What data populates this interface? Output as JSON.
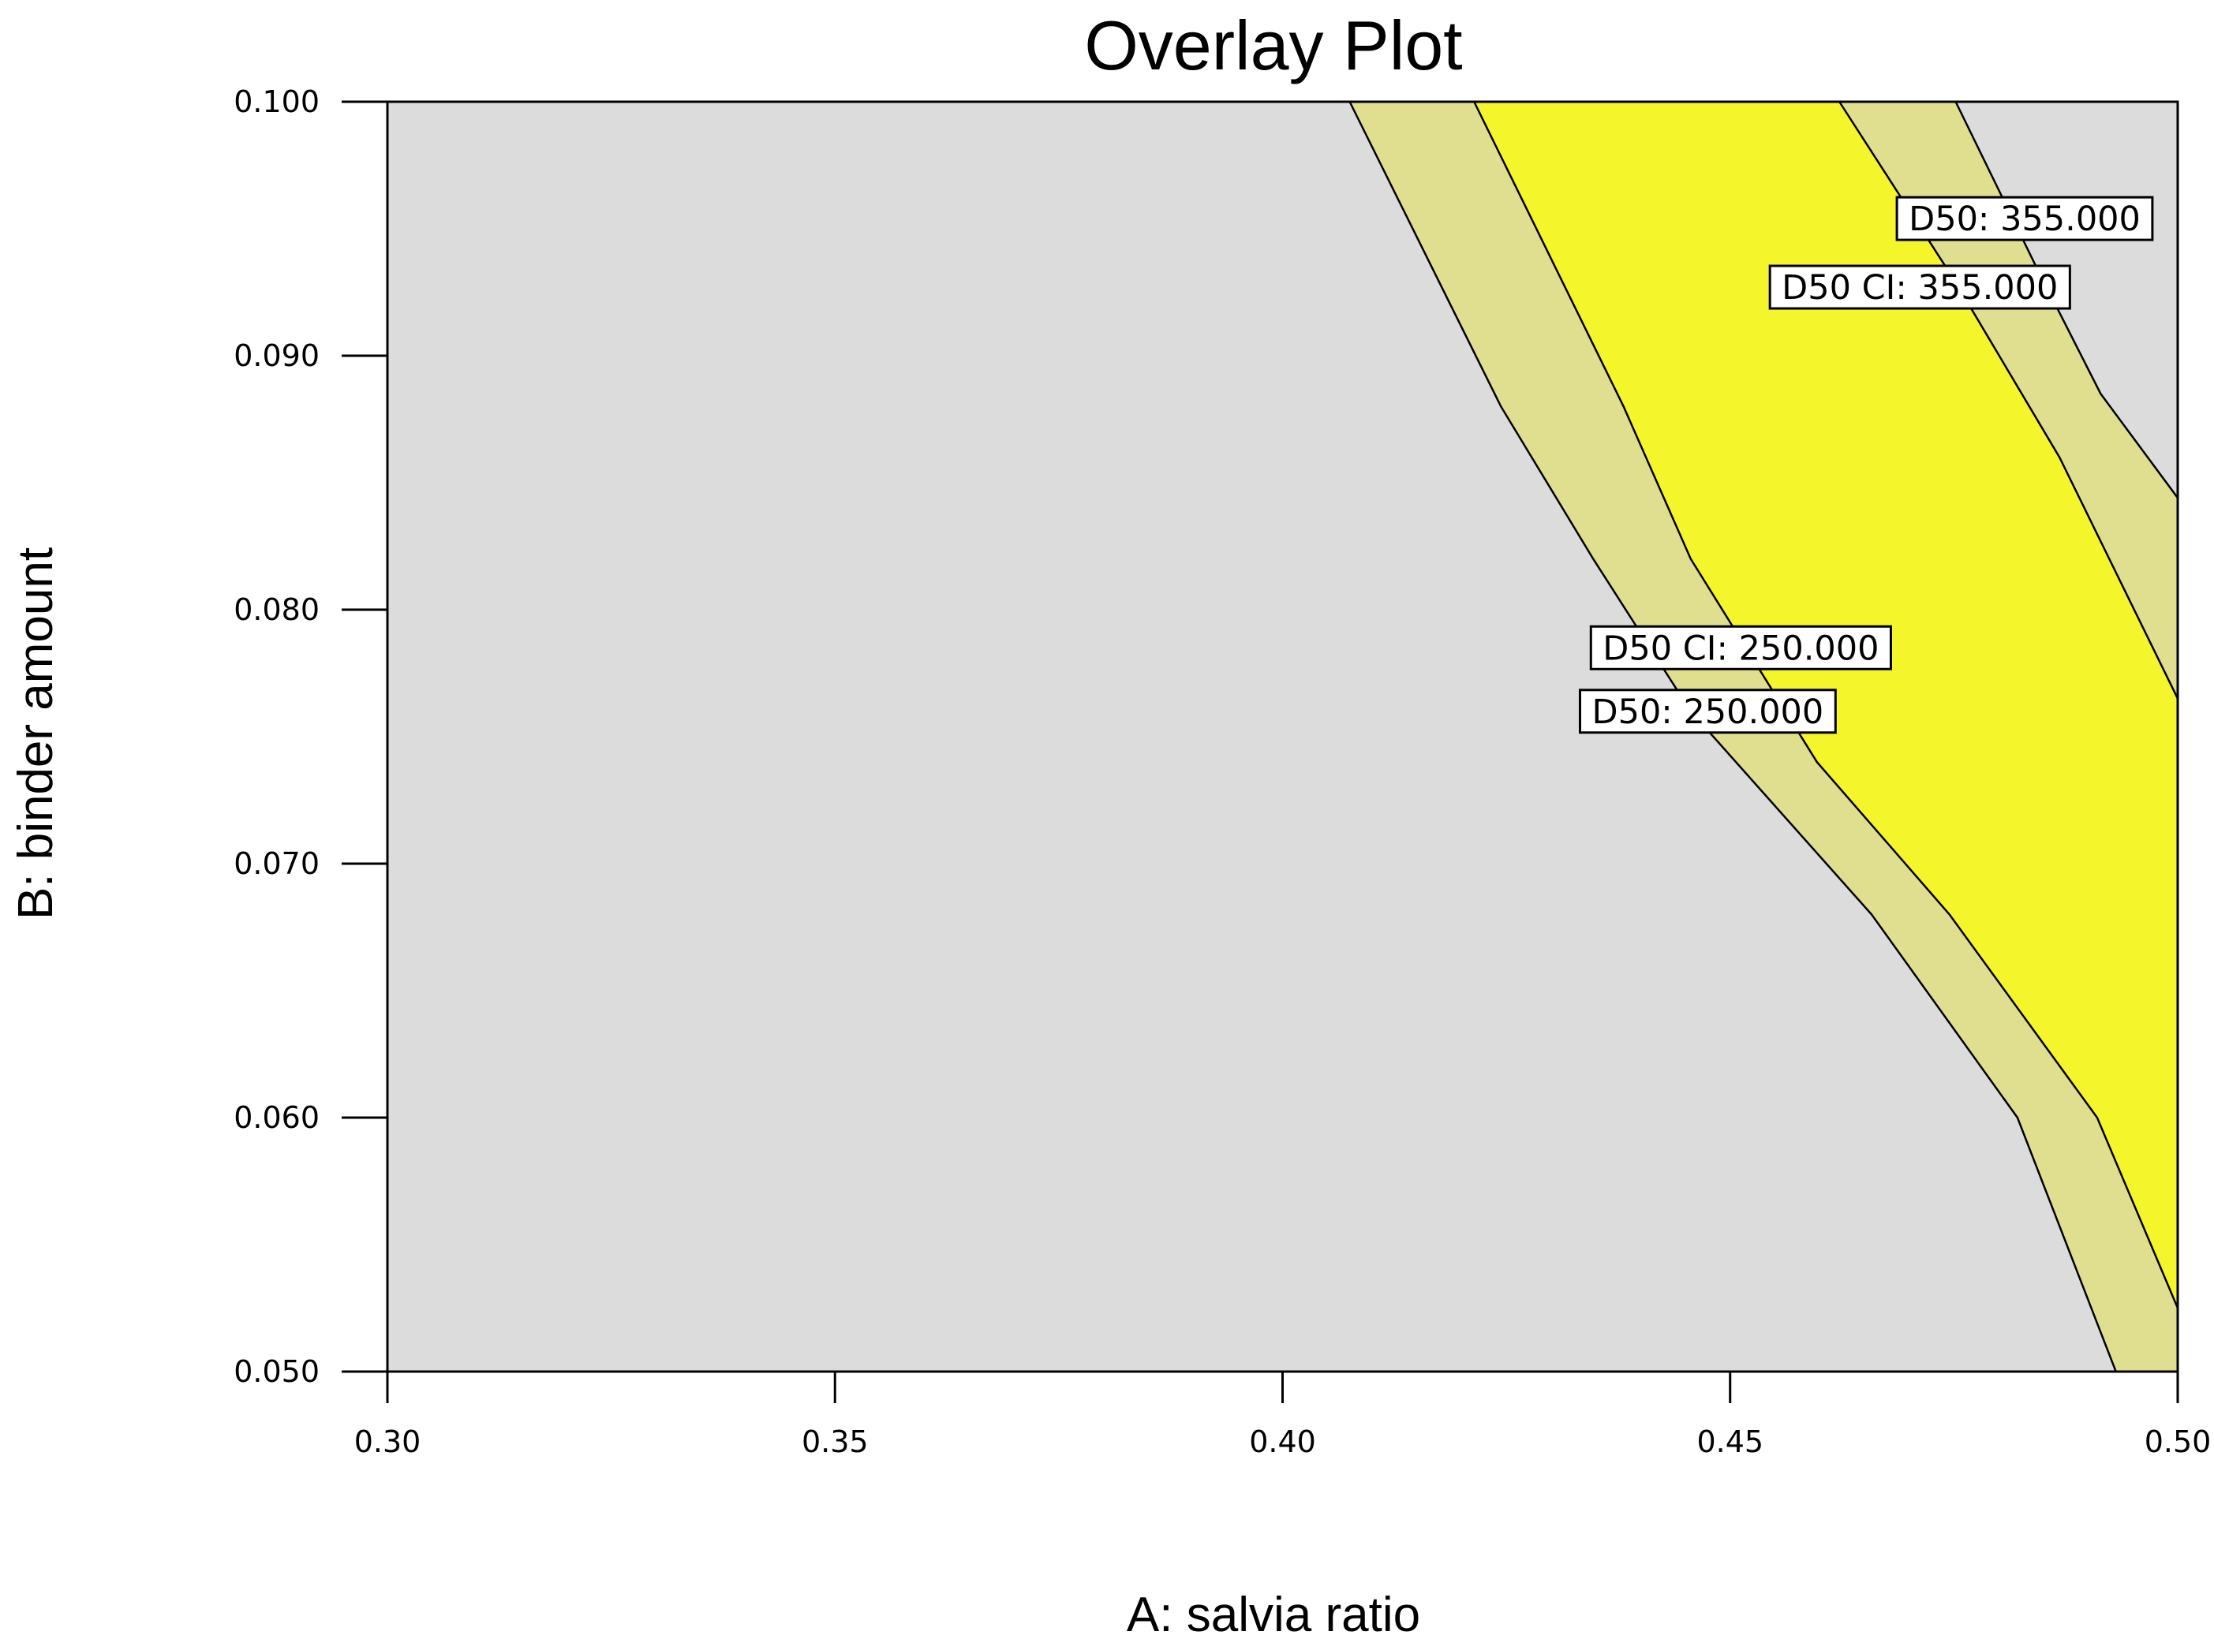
{
  "chart_data": {
    "type": "contour",
    "title": "Overlay Plot",
    "xlabel": "A: salvia ratio",
    "ylabel": "B: binder amount",
    "xlim": [
      0.3,
      0.5
    ],
    "ylim": [
      0.05,
      0.1
    ],
    "xticks": [
      "0.30",
      "0.35",
      "0.40",
      "0.45",
      "0.50"
    ],
    "yticks": [
      "0.050",
      "0.060",
      "0.070",
      "0.080",
      "0.090",
      "0.100"
    ],
    "contours": [
      {
        "name": "D50: 250.000",
        "points": [
          [
            0.4075,
            0.1
          ],
          [
            0.4244,
            0.088
          ],
          [
            0.4347,
            0.082
          ],
          [
            0.4456,
            0.076
          ],
          [
            0.4658,
            0.068
          ],
          [
            0.4821,
            0.06
          ],
          [
            0.4931,
            0.05
          ]
        ]
      },
      {
        "name": "D50 CI:  250.000",
        "points": [
          [
            0.4214,
            0.1
          ],
          [
            0.4381,
            0.088
          ],
          [
            0.4456,
            0.082
          ],
          [
            0.4597,
            0.074
          ],
          [
            0.4745,
            0.068
          ],
          [
            0.491,
            0.06
          ],
          [
            0.5,
            0.0525
          ]
        ]
      },
      {
        "name": "D50 CI:  355.000",
        "points": [
          [
            0.4622,
            0.1
          ],
          [
            0.475,
            0.093
          ],
          [
            0.4868,
            0.086
          ],
          [
            0.5,
            0.0765
          ]
        ]
      },
      {
        "name": "D50: 355.000",
        "points": [
          [
            0.4752,
            0.1
          ],
          [
            0.4842,
            0.0935
          ],
          [
            0.4914,
            0.0885
          ],
          [
            0.5,
            0.0844
          ]
        ]
      }
    ],
    "contour_labels": [
      {
        "text": "D50: 355.000",
        "x": 0.4829,
        "y": 0.0954
      },
      {
        "text": "D50 CI:  355.000",
        "x": 0.4712,
        "y": 0.0927
      },
      {
        "text": "D50 CI:  250.000",
        "x": 0.4512,
        "y": 0.0785
      },
      {
        "text": "D50: 250.000",
        "x": 0.4475,
        "y": 0.076
      }
    ],
    "colors": {
      "outside": "#dcdcdc",
      "confidence_band": "#dfdf8f",
      "sweet_spot": "#f5f52b",
      "line": "#000000"
    }
  }
}
